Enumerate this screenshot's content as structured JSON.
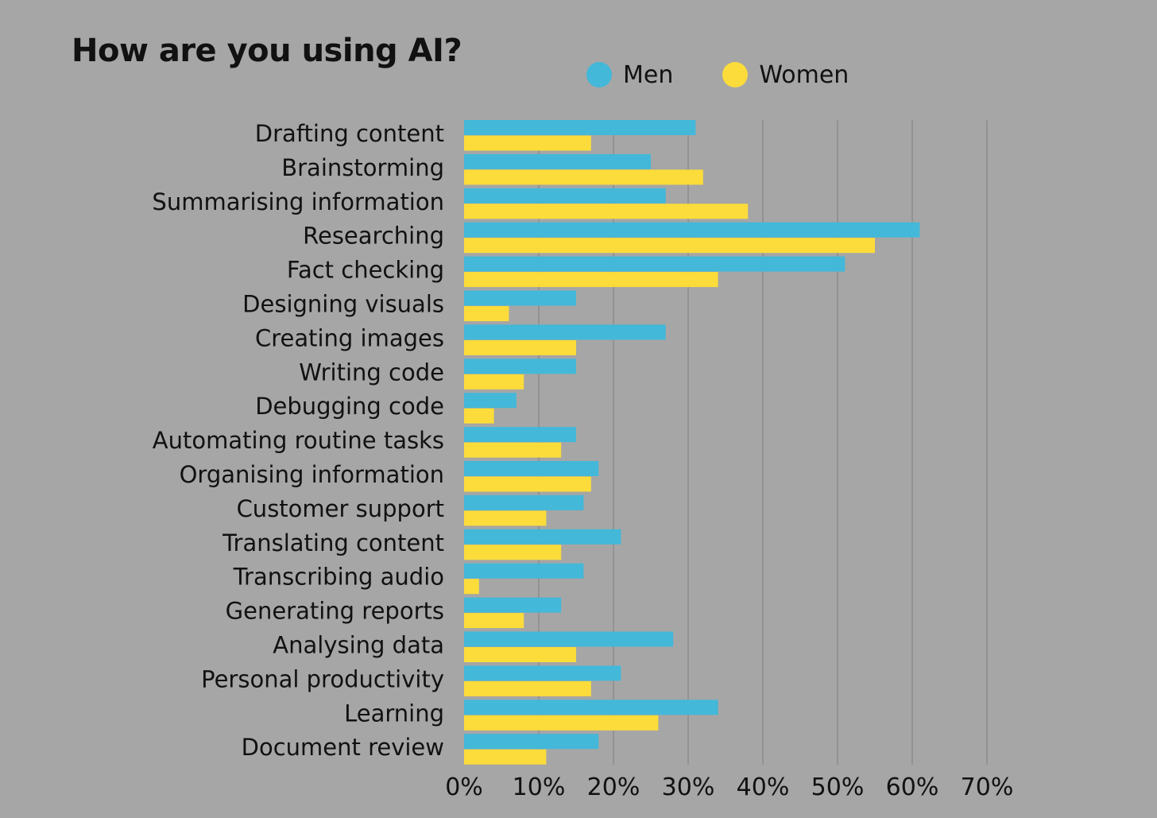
{
  "chart_data": {
    "type": "bar",
    "orientation": "horizontal",
    "title": "How are you using AI?",
    "xlabel": "",
    "ylabel": "",
    "xlim": [
      0,
      70
    ],
    "x_ticks": [
      "0%",
      "10%",
      "20%",
      "30%",
      "40%",
      "50%",
      "60%",
      "70%"
    ],
    "grid": true,
    "legend_position": "top",
    "categories": [
      "Drafting content",
      "Brainstorming",
      "Summarising information",
      "Researching",
      "Fact checking",
      "Designing visuals",
      "Creating images",
      "Writing code",
      "Debugging code",
      "Automating routine tasks",
      "Organising information",
      "Customer support",
      "Translating content",
      "Transcribing audio",
      "Generating reports",
      "Analysing data",
      "Personal productivity",
      "Learning",
      "Document review"
    ],
    "series": [
      {
        "name": "Men",
        "color": "#43b8d9",
        "values": [
          31,
          25,
          27,
          61,
          51,
          15,
          27,
          15,
          7,
          15,
          18,
          16,
          21,
          16,
          13,
          28,
          21,
          34,
          18
        ]
      },
      {
        "name": "Women",
        "color": "#fcdc3a",
        "values": [
          17,
          32,
          38,
          55,
          34,
          6,
          15,
          8,
          4,
          13,
          17,
          11,
          13,
          2,
          8,
          15,
          17,
          26,
          11
        ]
      }
    ]
  },
  "colors": {
    "background": "#a6a6a6",
    "gridline": "#808080",
    "text": "#111111"
  }
}
